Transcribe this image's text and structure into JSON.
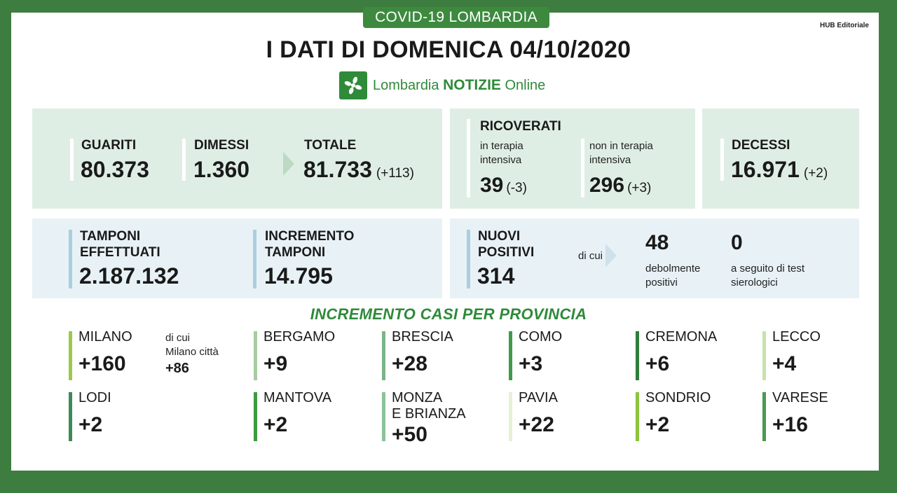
{
  "header": {
    "tag": "COVID-19 LOMBARDIA",
    "hub": "HUB Editoriale",
    "title": "I DATI DI DOMENICA 04/10/2020"
  },
  "logo": {
    "name": "Lombardia",
    "bold": "NOTIZIE",
    "suffix": "Online"
  },
  "guariti": {
    "label": "GUARITI",
    "value": "80.373"
  },
  "dimessi": {
    "label": "DIMESSI",
    "value": "1.360"
  },
  "totale": {
    "label": "TOTALE",
    "value": "81.733",
    "delta": "(+113)"
  },
  "ricoverati": {
    "label": "RICOVERATI",
    "ti_label_1": "in terapia",
    "ti_label_2": "intensiva",
    "ti_value": "39",
    "ti_delta": "(-3)",
    "nti_label_1": "non in terapia",
    "nti_label_2": "intensiva",
    "nti_value": "296",
    "nti_delta": "(+3)"
  },
  "decessi": {
    "label": "DECESSI",
    "value": "16.971",
    "delta": "(+2)"
  },
  "tamponi": {
    "label_1": "TAMPONI",
    "label_2": "EFFETTUATI",
    "value": "2.187.132"
  },
  "incremento": {
    "label_1": "INCREMENTO",
    "label_2": "TAMPONI",
    "value": "14.795"
  },
  "nuovi": {
    "label_1": "NUOVI",
    "label_2": "POSITIVI",
    "value": "314",
    "di_cui": "di cui",
    "deb_value": "48",
    "deb_label_1": "debolmente",
    "deb_label_2": "positivi",
    "sier_value": "0",
    "sier_label_1": "a seguito di test",
    "sier_label_2": "sierologici"
  },
  "section_title": "INCREMENTO CASI PER PROVINCIA",
  "milano_city": {
    "l1": "di cui",
    "l2": "Milano città",
    "value": "+86"
  },
  "provinces": [
    {
      "name": "MILANO",
      "value": "+160",
      "color": "#9dc94a"
    },
    {
      "name": "BERGAMO",
      "value": "+9",
      "color": "#a7cca0"
    },
    {
      "name": "BRESCIA",
      "value": "+28",
      "color": "#7cb48a"
    },
    {
      "name": "COMO",
      "value": "+3",
      "color": "#3f9a4a"
    },
    {
      "name": "CREMONA",
      "value": "+6",
      "color": "#2f7d3a"
    },
    {
      "name": "LECCO",
      "value": "+4",
      "color": "#c6e3a9"
    },
    {
      "name": "LODI",
      "value": "+2",
      "color": "#3c8a55"
    },
    {
      "name": "MANTOVA",
      "value": "+2",
      "color": "#3f9a3f"
    },
    {
      "name": "MONZA",
      "name2": "E BRIANZA",
      "value": "+50",
      "color": "#8cc29b"
    },
    {
      "name": "PAVIA",
      "value": "+22",
      "color": "#e6f2d3"
    },
    {
      "name": "SONDRIO",
      "value": "+2",
      "color": "#8cc43f"
    },
    {
      "name": "VARESE",
      "value": "+16",
      "color": "#4b9a4f"
    }
  ]
}
